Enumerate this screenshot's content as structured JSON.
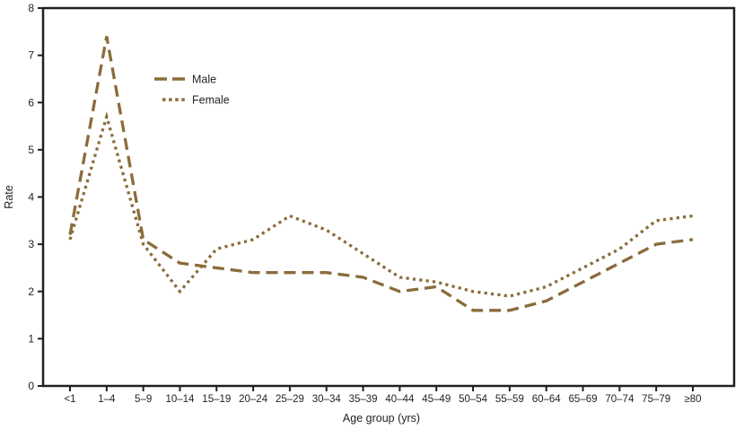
{
  "colors": {
    "line": "#8a6c3b",
    "axis": "#231f20",
    "text": "#231f20",
    "background": "#ffffff"
  },
  "chart_data": {
    "type": "line",
    "title": "",
    "xlabel": "Age group (yrs)",
    "ylabel": "Rate",
    "ylim": [
      0,
      8
    ],
    "yticks": [
      0,
      1,
      2,
      3,
      4,
      5,
      6,
      7,
      8
    ],
    "grid": false,
    "legend_position": "upper-left-inside",
    "frame": "full-box",
    "categories": [
      "<1",
      "1–4",
      "5–9",
      "10–14",
      "15–19",
      "20–24",
      "25–29",
      "30–34",
      "35–39",
      "40–44",
      "45–49",
      "50–54",
      "55–59",
      "60–64",
      "65–69",
      "70–74",
      "75–79",
      "≥80"
    ],
    "series": [
      {
        "name": "Male",
        "style": "dashed",
        "values": [
          3.2,
          7.4,
          3.1,
          2.6,
          2.5,
          2.4,
          2.4,
          2.4,
          2.3,
          2.0,
          2.1,
          1.6,
          1.6,
          1.8,
          2.2,
          2.6,
          3.0,
          3.1
        ]
      },
      {
        "name": "Female",
        "style": "dotted",
        "values": [
          3.1,
          5.7,
          3.0,
          2.0,
          2.9,
          3.1,
          3.6,
          3.3,
          2.8,
          2.3,
          2.2,
          2.0,
          1.9,
          2.1,
          2.5,
          2.9,
          3.5,
          3.6
        ]
      }
    ]
  }
}
